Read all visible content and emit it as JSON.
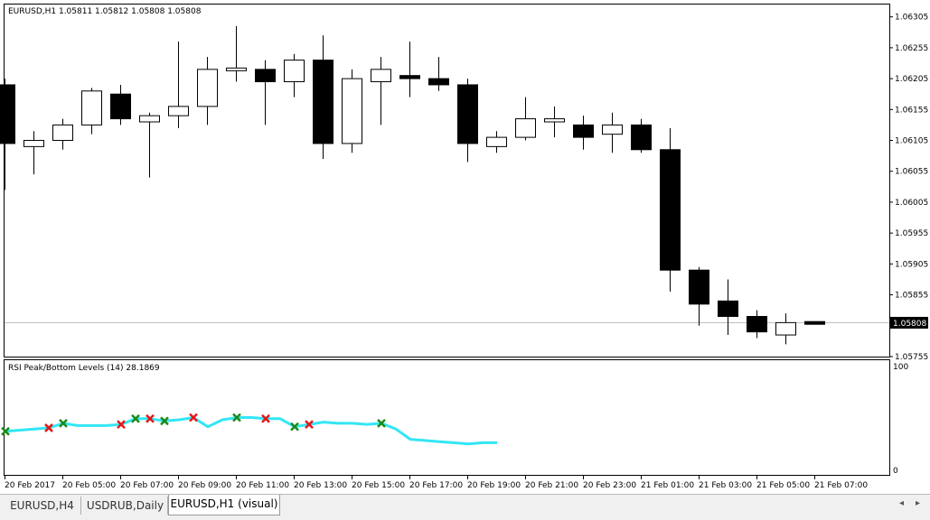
{
  "main_chart": {
    "header": "EURUSD,H1  1.05811 1.05812 1.05808 1.05808",
    "price_ticks": [
      "1.06305",
      "1.06255",
      "1.06205",
      "1.06155",
      "1.06105",
      "1.06055",
      "1.06005",
      "1.05955",
      "1.05905",
      "1.05855",
      "1.05805",
      "1.05755"
    ],
    "current_price_label": "1.05808"
  },
  "indicator": {
    "header": "RSI Peak/Bottom Levels (14)  28.1869",
    "axis_top": "100",
    "axis_bottom": "0",
    "line_color": "#33e6f5",
    "peak_marker_color": "#e01818",
    "bottom_marker_color": "#1a8a1a"
  },
  "time_labels": [
    "20 Feb 2017",
    "20 Feb 05:00",
    "20 Feb 07:00",
    "20 Feb 09:00",
    "20 Feb 11:00",
    "20 Feb 13:00",
    "20 Feb 15:00",
    "20 Feb 17:00",
    "20 Feb 19:00",
    "20 Feb 21:00",
    "20 Feb 23:00",
    "21 Feb 01:00",
    "21 Feb 03:00",
    "21 Feb 05:00",
    "21 Feb 07:00"
  ],
  "tabs": [
    {
      "label": "EURUSD,H4",
      "active": false
    },
    {
      "label": "USDRUB,Daily",
      "active": false
    },
    {
      "label": "EURUSD,H1 (visual)",
      "active": true
    }
  ],
  "tab_scroll": {
    "left": "◂",
    "right": "▸"
  },
  "chart_data": [
    {
      "type": "candlestick",
      "symbol": "EURUSD",
      "timeframe": "H1",
      "ylim": [
        1.05755,
        1.06325
      ],
      "candles": [
        {
          "o": 1.06195,
          "h": 1.06205,
          "l": 1.06025,
          "c": 1.061
        },
        {
          "o": 1.06095,
          "h": 1.0612,
          "l": 1.0605,
          "c": 1.06105
        },
        {
          "o": 1.06105,
          "h": 1.0614,
          "l": 1.0609,
          "c": 1.0613
        },
        {
          "o": 1.0613,
          "h": 1.0619,
          "l": 1.06115,
          "c": 1.06185
        },
        {
          "o": 1.0618,
          "h": 1.06195,
          "l": 1.0613,
          "c": 1.0614
        },
        {
          "o": 1.06135,
          "h": 1.0615,
          "l": 1.06045,
          "c": 1.06145
        },
        {
          "o": 1.06145,
          "h": 1.06265,
          "l": 1.06125,
          "c": 1.0616
        },
        {
          "o": 1.0616,
          "h": 1.0624,
          "l": 1.0613,
          "c": 1.0622
        },
        {
          "o": 1.0622,
          "h": 1.0629,
          "l": 1.062,
          "c": 1.0622
        },
        {
          "o": 1.0622,
          "h": 1.06235,
          "l": 1.0613,
          "c": 1.062
        },
        {
          "o": 1.062,
          "h": 1.06245,
          "l": 1.06175,
          "c": 1.06235
        },
        {
          "o": 1.06235,
          "h": 1.06275,
          "l": 1.06075,
          "c": 1.061
        },
        {
          "o": 1.061,
          "h": 1.0622,
          "l": 1.06085,
          "c": 1.06205
        },
        {
          "o": 1.062,
          "h": 1.0624,
          "l": 1.0613,
          "c": 1.0622
        },
        {
          "o": 1.0621,
          "h": 1.06265,
          "l": 1.06175,
          "c": 1.06205
        },
        {
          "o": 1.06205,
          "h": 1.0624,
          "l": 1.06185,
          "c": 1.06195
        },
        {
          "o": 1.06195,
          "h": 1.06205,
          "l": 1.0607,
          "c": 1.061
        },
        {
          "o": 1.06095,
          "h": 1.0612,
          "l": 1.06085,
          "c": 1.0611
        },
        {
          "o": 1.0611,
          "h": 1.06175,
          "l": 1.06105,
          "c": 1.0614
        },
        {
          "o": 1.06135,
          "h": 1.0616,
          "l": 1.0611,
          "c": 1.0614
        },
        {
          "o": 1.0613,
          "h": 1.06145,
          "l": 1.0609,
          "c": 1.0611
        },
        {
          "o": 1.06115,
          "h": 1.0615,
          "l": 1.06085,
          "c": 1.0613
        },
        {
          "o": 1.0613,
          "h": 1.0614,
          "l": 1.06085,
          "c": 1.0609
        },
        {
          "o": 1.0609,
          "h": 1.06125,
          "l": 1.0586,
          "c": 1.05895
        },
        {
          "o": 1.05895,
          "h": 1.059,
          "l": 1.05805,
          "c": 1.0584
        },
        {
          "o": 1.05845,
          "h": 1.0588,
          "l": 1.0579,
          "c": 1.0582
        },
        {
          "o": 1.0582,
          "h": 1.0583,
          "l": 1.05785,
          "c": 1.05795
        },
        {
          "o": 1.0579,
          "h": 1.05825,
          "l": 1.05775,
          "c": 1.0581
        },
        {
          "o": 1.05811,
          "h": 1.05812,
          "l": 1.05808,
          "c": 1.05808
        }
      ]
    },
    {
      "type": "line",
      "title": "RSI Peak/Bottom Levels (14)",
      "last_value": 28.1869,
      "ylim": [
        0,
        100
      ],
      "values": [
        38,
        39,
        40,
        41,
        45,
        43,
        43,
        43,
        44,
        49,
        49,
        47,
        48,
        50,
        42,
        48,
        50,
        50,
        49,
        49,
        42,
        44,
        46,
        45,
        45,
        44,
        45,
        40,
        31,
        30,
        29,
        28,
        27,
        28,
        28
      ],
      "peaks_idx": [
        3,
        8,
        10,
        13,
        18,
        21
      ],
      "bottoms_idx": [
        0,
        4,
        9,
        11,
        16,
        20,
        26
      ]
    }
  ]
}
